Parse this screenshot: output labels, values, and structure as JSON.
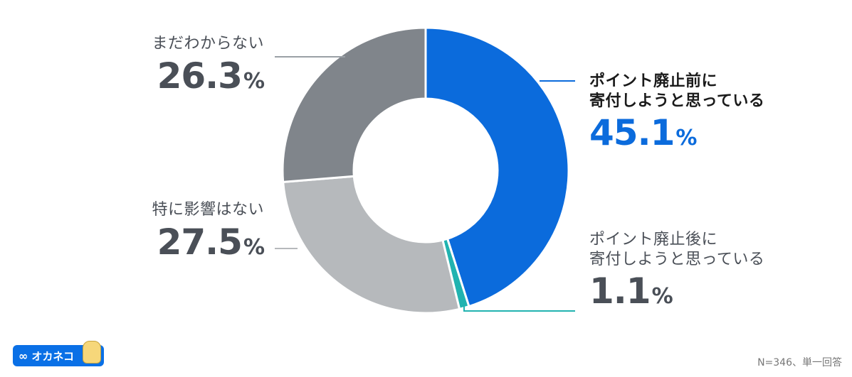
{
  "chart_data": {
    "type": "pie",
    "donut": true,
    "slices": [
      {
        "label_lines": [
          "ポイント廃止前に",
          "寄付しようと思っている"
        ],
        "value": 45.1,
        "value_text": "45.1",
        "color": "#0b6bdc"
      },
      {
        "label_lines": [
          "ポイント廃止後に",
          "寄付しようと思っている"
        ],
        "value": 1.1,
        "value_text": "1.1",
        "color": "#21b3b0"
      },
      {
        "label_lines": [
          "特に影響はない"
        ],
        "value": 27.5,
        "value_text": "27.5",
        "color": "#b6b9bc"
      },
      {
        "label_lines": [
          "まだわからない"
        ],
        "value": 26.3,
        "value_text": "26.3",
        "color": "#80858b"
      }
    ],
    "percent_sign": "%"
  },
  "brand": {
    "logo_text": "オカネコ",
    "logo_icon": "infinity-icon"
  },
  "footnote": "N=346、単一回答"
}
